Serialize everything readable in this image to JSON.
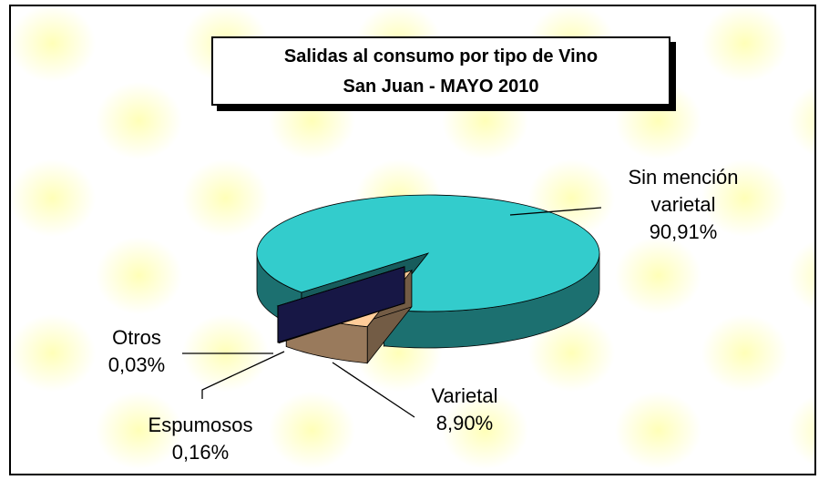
{
  "chart_data": {
    "type": "pie",
    "title": "Salidas al consumo por tipo de Vino",
    "subtitle": "San Juan - MAYO 2010",
    "categories": [
      "Sin mención varietal",
      "Varietal",
      "Espumosos",
      "Otros"
    ],
    "values": [
      90.91,
      8.9,
      0.16,
      0.03
    ],
    "value_labels": [
      "90,91%",
      "8,90%",
      "0,16%",
      "0,03%"
    ],
    "colors": [
      "#33cccc",
      "#ffcc99",
      "#993366",
      "#333399"
    ]
  }
}
